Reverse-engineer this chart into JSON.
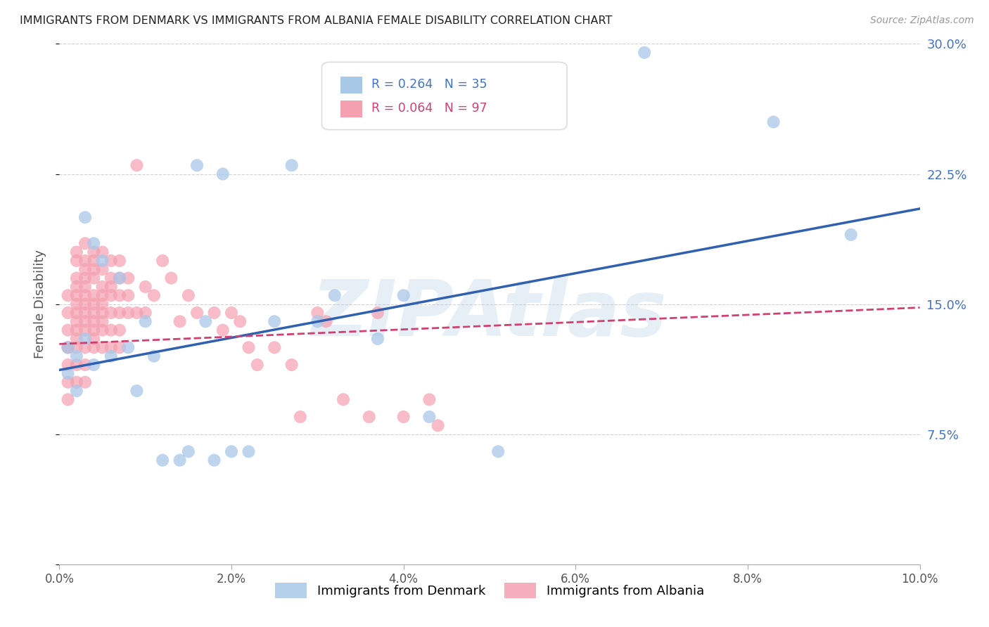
{
  "title": "IMMIGRANTS FROM DENMARK VS IMMIGRANTS FROM ALBANIA FEMALE DISABILITY CORRELATION CHART",
  "source": "Source: ZipAtlas.com",
  "ylabel": "Female Disability",
  "xlim": [
    0.0,
    0.1
  ],
  "ylim": [
    0.0,
    0.3
  ],
  "xticks": [
    0.0,
    0.02,
    0.04,
    0.06,
    0.08,
    0.1
  ],
  "yticks": [
    0.0,
    0.075,
    0.15,
    0.225,
    0.3
  ],
  "xtick_labels": [
    "0.0%",
    "2.0%",
    "4.0%",
    "6.0%",
    "8.0%",
    "10.0%"
  ],
  "ytick_labels_right": [
    "",
    "7.5%",
    "15.0%",
    "22.5%",
    "30.0%"
  ],
  "denmark_color": "#a8c8e8",
  "albania_color": "#f4a0b0",
  "denmark_line_color": "#3060b0",
  "albania_line_color": "#d04070",
  "background_color": "#ffffff",
  "watermark": "ZIPAtlas",
  "denmark_x": [
    0.001,
    0.001,
    0.002,
    0.002,
    0.003,
    0.003,
    0.004,
    0.004,
    0.005,
    0.006,
    0.007,
    0.008,
    0.009,
    0.01,
    0.011,
    0.012,
    0.014,
    0.015,
    0.016,
    0.017,
    0.018,
    0.019,
    0.02,
    0.022,
    0.025,
    0.027,
    0.03,
    0.032,
    0.037,
    0.04,
    0.043,
    0.051,
    0.068,
    0.083,
    0.092
  ],
  "denmark_y": [
    0.125,
    0.11,
    0.12,
    0.1,
    0.2,
    0.13,
    0.185,
    0.115,
    0.175,
    0.12,
    0.165,
    0.125,
    0.1,
    0.14,
    0.12,
    0.06,
    0.06,
    0.065,
    0.23,
    0.14,
    0.06,
    0.225,
    0.065,
    0.065,
    0.14,
    0.23,
    0.14,
    0.155,
    0.13,
    0.155,
    0.085,
    0.065,
    0.295,
    0.255,
    0.19
  ],
  "albania_x": [
    0.001,
    0.001,
    0.001,
    0.001,
    0.001,
    0.001,
    0.001,
    0.001,
    0.002,
    0.002,
    0.002,
    0.002,
    0.002,
    0.002,
    0.002,
    0.002,
    0.002,
    0.002,
    0.002,
    0.002,
    0.002,
    0.003,
    0.003,
    0.003,
    0.003,
    0.003,
    0.003,
    0.003,
    0.003,
    0.003,
    0.003,
    0.003,
    0.003,
    0.003,
    0.004,
    0.004,
    0.004,
    0.004,
    0.004,
    0.004,
    0.004,
    0.004,
    0.004,
    0.004,
    0.004,
    0.005,
    0.005,
    0.005,
    0.005,
    0.005,
    0.005,
    0.005,
    0.005,
    0.005,
    0.006,
    0.006,
    0.006,
    0.006,
    0.006,
    0.006,
    0.006,
    0.007,
    0.007,
    0.007,
    0.007,
    0.007,
    0.007,
    0.008,
    0.008,
    0.008,
    0.009,
    0.009,
    0.01,
    0.01,
    0.011,
    0.012,
    0.013,
    0.014,
    0.015,
    0.016,
    0.018,
    0.019,
    0.02,
    0.021,
    0.022,
    0.023,
    0.025,
    0.027,
    0.028,
    0.03,
    0.031,
    0.033,
    0.036,
    0.037,
    0.04,
    0.043,
    0.044
  ],
  "albania_y": [
    0.125,
    0.155,
    0.145,
    0.135,
    0.125,
    0.115,
    0.105,
    0.095,
    0.18,
    0.175,
    0.165,
    0.16,
    0.155,
    0.15,
    0.145,
    0.14,
    0.135,
    0.13,
    0.125,
    0.115,
    0.105,
    0.185,
    0.175,
    0.17,
    0.165,
    0.16,
    0.155,
    0.15,
    0.145,
    0.14,
    0.135,
    0.125,
    0.115,
    0.105,
    0.18,
    0.175,
    0.17,
    0.165,
    0.155,
    0.15,
    0.145,
    0.14,
    0.135,
    0.13,
    0.125,
    0.18,
    0.17,
    0.16,
    0.155,
    0.15,
    0.145,
    0.14,
    0.135,
    0.125,
    0.175,
    0.165,
    0.16,
    0.155,
    0.145,
    0.135,
    0.125,
    0.175,
    0.165,
    0.155,
    0.145,
    0.135,
    0.125,
    0.165,
    0.155,
    0.145,
    0.23,
    0.145,
    0.16,
    0.145,
    0.155,
    0.175,
    0.165,
    0.14,
    0.155,
    0.145,
    0.145,
    0.135,
    0.145,
    0.14,
    0.125,
    0.115,
    0.125,
    0.115,
    0.085,
    0.145,
    0.14,
    0.095,
    0.085,
    0.145,
    0.085,
    0.095,
    0.08
  ]
}
